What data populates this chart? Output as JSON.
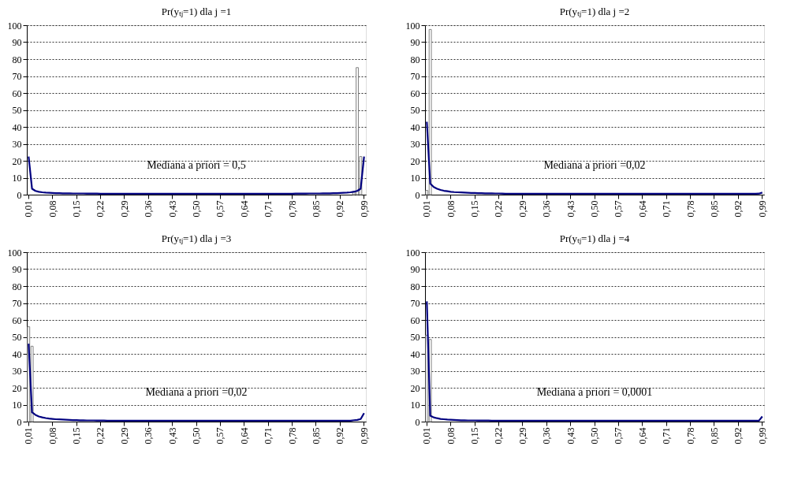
{
  "chart_data": [
    {
      "type": "bar",
      "title": "Pr(yₜⱼ=1) dla j =1",
      "grid": "y",
      "ylim": [
        0,
        100
      ],
      "yticks": [
        0,
        10,
        20,
        30,
        40,
        50,
        60,
        70,
        80,
        90,
        100
      ],
      "categories": [
        "0,01",
        null,
        null,
        null,
        null,
        null,
        null,
        "0,08",
        null,
        null,
        null,
        null,
        null,
        null,
        "0,15",
        null,
        null,
        null,
        null,
        null,
        null,
        "0,22",
        null,
        null,
        null,
        null,
        null,
        null,
        "0,29",
        null,
        null,
        null,
        null,
        null,
        null,
        "0,36",
        null,
        null,
        null,
        null,
        null,
        null,
        "0,43",
        null,
        null,
        null,
        null,
        null,
        null,
        "0,50",
        null,
        null,
        null,
        null,
        null,
        null,
        "0,57",
        null,
        null,
        null,
        null,
        null,
        null,
        "0,64",
        null,
        null,
        null,
        null,
        null,
        null,
        "0,71",
        null,
        null,
        null,
        null,
        null,
        null,
        "0,78",
        null,
        null,
        null,
        null,
        null,
        null,
        "0,85",
        null,
        null,
        null,
        null,
        null,
        null,
        "0,92",
        null,
        null,
        null,
        null,
        null,
        null,
        "0,99"
      ],
      "annotations": [
        "Mediana a priori = 0,5"
      ],
      "series": [
        {
          "color": "#808080",
          "values": [
            null,
            null,
            null,
            null,
            null,
            null,
            null,
            null,
            null,
            null,
            null,
            null,
            null,
            null,
            null,
            null,
            null,
            null,
            null,
            null,
            null,
            null,
            null,
            null,
            null,
            null,
            null,
            null,
            null,
            null,
            null,
            null,
            null,
            null,
            null,
            null,
            null,
            null,
            null,
            null,
            null,
            null,
            null,
            null,
            null,
            null,
            null,
            null,
            null,
            null,
            null,
            null,
            null,
            null,
            null,
            null,
            null,
            null,
            null,
            null,
            null,
            null,
            null,
            null,
            null,
            null,
            null,
            null,
            null,
            null,
            null,
            null,
            null,
            null,
            null,
            null,
            null,
            null,
            null,
            null,
            null,
            null,
            null,
            null,
            null,
            null,
            null,
            null,
            null,
            null,
            null,
            null,
            null,
            null,
            null,
            2,
            75,
            22.5,
            null
          ]
        },
        {
          "type": "line",
          "color": "#000080",
          "values": [
            22.5,
            3.5,
            2.2,
            1.7,
            1.4,
            1.2,
            1.1,
            1.0,
            0.9,
            0.9,
            0.8,
            0.8,
            0.8,
            0.7,
            0.7,
            0.7,
            0.7,
            0.6,
            0.6,
            0.6,
            0.6,
            0.5,
            0.5,
            0.5,
            0.5,
            0.5,
            0.5,
            0.5,
            0.5,
            0.5,
            0.5,
            0.5,
            0.5,
            0.5,
            0.5,
            0.5,
            0.5,
            0.5,
            0.5,
            0.5,
            0.5,
            0.5,
            0.5,
            0.5,
            0.5,
            0.5,
            0.5,
            0.5,
            0.5,
            0.5,
            0.5,
            0.5,
            0.5,
            0.5,
            0.5,
            0.5,
            0.5,
            0.5,
            0.5,
            0.5,
            0.5,
            0.5,
            0.5,
            0.5,
            0.5,
            0.5,
            0.5,
            0.5,
            0.5,
            0.5,
            0.5,
            0.5,
            0.5,
            0.5,
            0.5,
            0.5,
            0.5,
            0.5,
            0.6,
            0.6,
            0.6,
            0.6,
            0.7,
            0.7,
            0.7,
            0.7,
            0.8,
            0.8,
            0.8,
            0.9,
            0.9,
            1.0,
            1.1,
            1.2,
            1.4,
            1.7,
            2.2,
            3.5,
            22.5
          ]
        }
      ]
    },
    {
      "type": "bar",
      "title": "Pr(yₜⱼ=1) dla j =2",
      "grid": "y",
      "ylim": [
        0,
        100
      ],
      "yticks": [
        0,
        10,
        20,
        30,
        40,
        50,
        60,
        70,
        80,
        90,
        100
      ],
      "categories": [
        "0,01",
        null,
        null,
        null,
        null,
        null,
        null,
        "0,08",
        null,
        null,
        null,
        null,
        null,
        null,
        "0,15",
        null,
        null,
        null,
        null,
        null,
        null,
        "0,22",
        null,
        null,
        null,
        null,
        null,
        null,
        "0,29",
        null,
        null,
        null,
        null,
        null,
        null,
        "0,36",
        null,
        null,
        null,
        null,
        null,
        null,
        "0,43",
        null,
        null,
        null,
        null,
        null,
        null,
        "0,50",
        null,
        null,
        null,
        null,
        null,
        null,
        "0,57",
        null,
        null,
        null,
        null,
        null,
        null,
        "0,64",
        null,
        null,
        null,
        null,
        null,
        null,
        "0,71",
        null,
        null,
        null,
        null,
        null,
        null,
        "0,78",
        null,
        null,
        null,
        null,
        null,
        null,
        "0,85",
        null,
        null,
        null,
        null,
        null,
        null,
        "0,92",
        null,
        null,
        null,
        null,
        null,
        null,
        "0,99"
      ],
      "annotations": [
        "Mediana a priori =0,02"
      ],
      "series": [
        {
          "color": "#808080",
          "values": [
            2.5,
            97.5,
            null,
            null,
            null,
            null,
            null,
            null,
            null,
            null,
            null,
            null,
            null,
            null,
            null,
            null,
            null,
            null,
            null,
            null,
            null,
            null,
            null,
            null,
            null,
            null,
            null,
            null,
            null,
            null,
            null,
            null,
            null,
            null,
            null,
            null,
            null,
            null,
            null,
            null,
            null,
            null,
            null,
            null,
            null,
            null,
            null,
            null,
            null,
            null,
            null,
            null,
            null,
            null,
            null,
            null,
            null,
            null,
            null,
            null,
            null,
            null,
            null,
            null,
            null,
            null,
            null,
            null,
            null,
            null,
            null,
            null,
            null,
            null,
            null,
            null,
            null,
            null,
            null,
            null,
            null,
            null,
            null,
            null,
            null,
            null,
            null,
            null,
            null,
            null,
            null,
            null,
            null,
            null,
            null,
            null,
            null,
            null,
            null
          ]
        },
        {
          "type": "line",
          "color": "#000080",
          "values": [
            43,
            6.5,
            4.5,
            3.5,
            2.8,
            2.3,
            2.0,
            1.7,
            1.5,
            1.4,
            1.3,
            1.2,
            1.1,
            1.0,
            1.0,
            0.9,
            0.9,
            0.8,
            0.8,
            0.8,
            0.7,
            0.7,
            0.6,
            0.5,
            0.5,
            0.5,
            0.5,
            0.5,
            0.5,
            0.5,
            0.5,
            0.5,
            0.5,
            0.5,
            0.5,
            0.5,
            0.5,
            0.5,
            0.5,
            0.5,
            0.5,
            0.5,
            0.5,
            0.5,
            0.5,
            0.5,
            0.5,
            0.5,
            0.5,
            0.5,
            0.5,
            0.5,
            0.5,
            0.5,
            0.5,
            0.5,
            0.5,
            0.5,
            0.5,
            0.5,
            0.5,
            0.5,
            0.5,
            0.5,
            0.5,
            0.5,
            0.5,
            0.5,
            0.5,
            0.5,
            0.5,
            0.5,
            0.5,
            0.5,
            0.5,
            0.5,
            0.5,
            0.5,
            0.5,
            0.5,
            0.5,
            0.5,
            0.5,
            0.5,
            0.5,
            0.5,
            0.5,
            0.5,
            0.5,
            0.5,
            0.5,
            0.5,
            0.5,
            0.5,
            0.5,
            0.5,
            0.5,
            0.6,
            1.2
          ]
        }
      ]
    },
    {
      "type": "bar",
      "title": "Pr(yₜⱼ=1) dla j =3",
      "grid": "y",
      "ylim": [
        0,
        100
      ],
      "yticks": [
        0,
        10,
        20,
        30,
        40,
        50,
        60,
        70,
        80,
        90,
        100
      ],
      "categories": [
        "0,01",
        null,
        null,
        null,
        null,
        null,
        null,
        "0,08",
        null,
        null,
        null,
        null,
        null,
        null,
        "0,15",
        null,
        null,
        null,
        null,
        null,
        null,
        "0,22",
        null,
        null,
        null,
        null,
        null,
        null,
        "0,29",
        null,
        null,
        null,
        null,
        null,
        null,
        "0,36",
        null,
        null,
        null,
        null,
        null,
        null,
        "0,43",
        null,
        null,
        null,
        null,
        null,
        null,
        "0,50",
        null,
        null,
        null,
        null,
        null,
        null,
        "0,57",
        null,
        null,
        null,
        null,
        null,
        null,
        "0,64",
        null,
        null,
        null,
        null,
        null,
        null,
        "0,71",
        null,
        null,
        null,
        null,
        null,
        null,
        "0,78",
        null,
        null,
        null,
        null,
        null,
        null,
        "0,85",
        null,
        null,
        null,
        null,
        null,
        null,
        "0,92",
        null,
        null,
        null,
        null,
        null,
        null,
        "0,99"
      ],
      "annotations": [
        "Mediana a priori =0,02"
      ],
      "series": [
        {
          "color": "#808080",
          "values": [
            56,
            44.5,
            null,
            null,
            null,
            null,
            null,
            null,
            null,
            null,
            null,
            null,
            null,
            null,
            null,
            null,
            null,
            null,
            null,
            null,
            null,
            null,
            null,
            null,
            null,
            null,
            null,
            null,
            null,
            null,
            null,
            null,
            null,
            null,
            null,
            null,
            null,
            null,
            null,
            null,
            null,
            null,
            null,
            null,
            null,
            null,
            null,
            null,
            null,
            null,
            null,
            null,
            null,
            null,
            null,
            null,
            null,
            null,
            null,
            null,
            null,
            null,
            null,
            null,
            null,
            null,
            null,
            null,
            null,
            null,
            null,
            null,
            null,
            null,
            null,
            null,
            null,
            null,
            null,
            null,
            null,
            null,
            null,
            null,
            null,
            null,
            null,
            null,
            null,
            null,
            null,
            null,
            null,
            null,
            null,
            null,
            null,
            null,
            null
          ]
        },
        {
          "type": "line",
          "color": "#000080",
          "values": [
            46,
            5.5,
            4,
            3,
            2.5,
            2.1,
            1.8,
            1.6,
            1.4,
            1.3,
            1.2,
            1.1,
            1.0,
            0.9,
            0.9,
            0.8,
            0.8,
            0.7,
            0.7,
            0.7,
            0.6,
            0.6,
            0.6,
            0.5,
            0.5,
            0.5,
            0.5,
            0.5,
            0.5,
            0.5,
            0.5,
            0.5,
            0.5,
            0.5,
            0.5,
            0.5,
            0.5,
            0.5,
            0.5,
            0.5,
            0.5,
            0.5,
            0.5,
            0.5,
            0.5,
            0.5,
            0.5,
            0.5,
            0.5,
            0.5,
            0.5,
            0.5,
            0.5,
            0.5,
            0.5,
            0.5,
            0.5,
            0.5,
            0.5,
            0.5,
            0.5,
            0.5,
            0.5,
            0.5,
            0.5,
            0.5,
            0.5,
            0.5,
            0.5,
            0.5,
            0.5,
            0.5,
            0.5,
            0.5,
            0.5,
            0.5,
            0.5,
            0.5,
            0.5,
            0.5,
            0.5,
            0.5,
            0.5,
            0.5,
            0.5,
            0.5,
            0.5,
            0.5,
            0.5,
            0.5,
            0.5,
            0.5,
            0.5,
            0.5,
            0.5,
            0.8,
            1.0,
            1.5,
            5
          ]
        }
      ]
    },
    {
      "type": "bar",
      "title": "Pr(yₜⱼ=1) dla j =4",
      "grid": "y",
      "ylim": [
        0,
        100
      ],
      "yticks": [
        0,
        10,
        20,
        30,
        40,
        50,
        60,
        70,
        80,
        90,
        100
      ],
      "categories": [
        "0,01",
        null,
        null,
        null,
        null,
        null,
        null,
        "0,08",
        null,
        null,
        null,
        null,
        null,
        null,
        "0,15",
        null,
        null,
        null,
        null,
        null,
        null,
        "0,22",
        null,
        null,
        null,
        null,
        null,
        null,
        "0,29",
        null,
        null,
        null,
        null,
        null,
        null,
        "0,36",
        null,
        null,
        null,
        null,
        null,
        null,
        "0,43",
        null,
        null,
        null,
        null,
        null,
        null,
        "0,50",
        null,
        null,
        null,
        null,
        null,
        null,
        "0,57",
        null,
        null,
        null,
        null,
        null,
        null,
        "0,64",
        null,
        null,
        null,
        null,
        null,
        null,
        "0,71",
        null,
        null,
        null,
        null,
        null,
        null,
        "0,78",
        null,
        null,
        null,
        null,
        null,
        null,
        "0,85",
        null,
        null,
        null,
        null,
        null,
        null,
        "0,92",
        null,
        null,
        null,
        null,
        null,
        null,
        "0,99"
      ],
      "annotations": [
        "Mediana a priori = 0,0001"
      ],
      "series": [
        {
          "color": "#808080",
          "values": [
            51,
            48.5,
            null,
            null,
            null,
            null,
            null,
            null,
            null,
            null,
            null,
            null,
            null,
            null,
            null,
            null,
            null,
            null,
            null,
            null,
            null,
            null,
            null,
            null,
            null,
            null,
            null,
            null,
            null,
            null,
            null,
            null,
            null,
            null,
            null,
            null,
            null,
            null,
            null,
            null,
            null,
            null,
            null,
            null,
            null,
            null,
            null,
            null,
            null,
            null,
            null,
            null,
            null,
            null,
            null,
            null,
            null,
            null,
            null,
            null,
            null,
            null,
            null,
            null,
            null,
            null,
            null,
            null,
            null,
            null,
            null,
            null,
            null,
            null,
            null,
            null,
            null,
            null,
            null,
            null,
            null,
            null,
            null,
            null,
            null,
            null,
            null,
            null,
            null,
            null,
            null,
            null,
            null,
            null,
            null,
            null,
            null,
            null,
            null
          ]
        },
        {
          "type": "line",
          "color": "#000080",
          "values": [
            71,
            3.5,
            2.5,
            2,
            1.6,
            1.4,
            1.2,
            1.1,
            1.0,
            0.9,
            0.8,
            0.8,
            0.7,
            0.7,
            0.7,
            0.6,
            0.6,
            0.6,
            0.6,
            0.5,
            0.5,
            0.5,
            0.5,
            0.5,
            0.5,
            0.5,
            0.5,
            0.5,
            0.5,
            0.5,
            0.5,
            0.5,
            0.5,
            0.5,
            0.5,
            0.5,
            0.5,
            0.5,
            0.5,
            0.5,
            0.5,
            0.5,
            0.5,
            0.5,
            0.5,
            0.5,
            0.5,
            0.5,
            0.5,
            0.5,
            0.5,
            0.5,
            0.5,
            0.5,
            0.5,
            0.5,
            0.5,
            0.5,
            0.5,
            0.5,
            0.5,
            0.5,
            0.5,
            0.5,
            0.5,
            0.5,
            0.5,
            0.5,
            0.5,
            0.5,
            0.5,
            0.5,
            0.5,
            0.5,
            0.5,
            0.5,
            0.5,
            0.5,
            0.5,
            0.5,
            0.5,
            0.5,
            0.5,
            0.5,
            0.5,
            0.5,
            0.5,
            0.5,
            0.5,
            0.5,
            0.5,
            0.5,
            0.5,
            0.5,
            0.5,
            0.5,
            0.5,
            0.5,
            3
          ]
        }
      ]
    }
  ]
}
